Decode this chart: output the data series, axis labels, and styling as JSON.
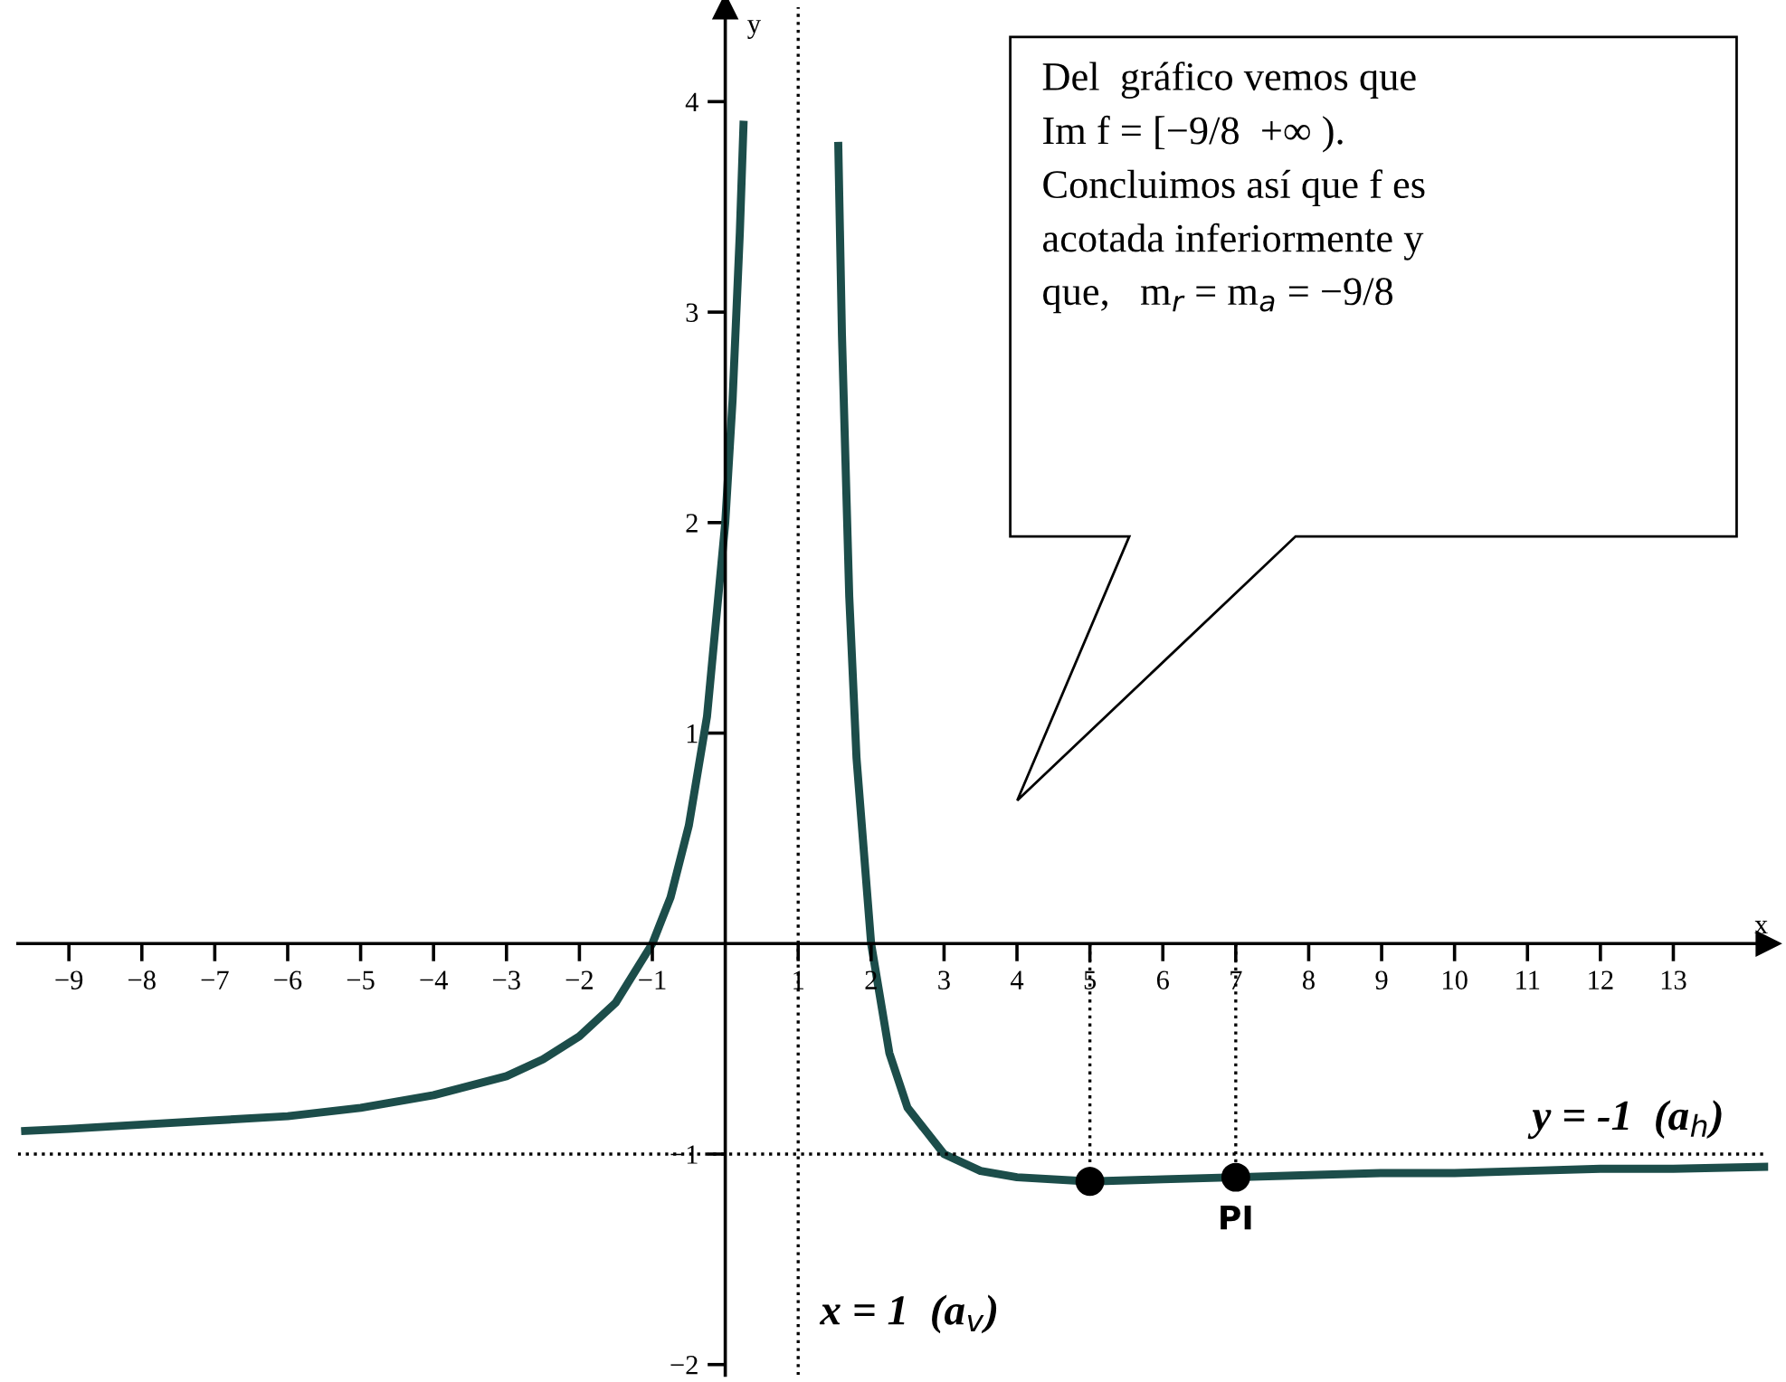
{
  "chart_data": {
    "type": "line",
    "xlabel": "x",
    "ylabel": "y",
    "xlim": [
      -9.7,
      14.3
    ],
    "ylim": [
      -2.05,
      4.45
    ],
    "xticks": [
      {
        "value": -9,
        "label": "−9"
      },
      {
        "value": -8,
        "label": "−8"
      },
      {
        "value": -7,
        "label": "−7"
      },
      {
        "value": -6,
        "label": "−6"
      },
      {
        "value": -5,
        "label": "−5"
      },
      {
        "value": -4,
        "label": "−4"
      },
      {
        "value": -3,
        "label": "−3"
      },
      {
        "value": -2,
        "label": "−2"
      },
      {
        "value": -1,
        "label": "−1"
      },
      1,
      2,
      3,
      4,
      5,
      6,
      7,
      8,
      9,
      10,
      11,
      12,
      13
    ],
    "yticks": [
      {
        "value": -2,
        "label": "−2"
      },
      {
        "value": -1,
        "label": "−1"
      },
      1,
      2,
      3,
      4
    ],
    "grid": false,
    "series": [
      {
        "color": "#1c4d4a",
        "x": [
          -9.6,
          -9,
          -8,
          -7,
          -6,
          -5,
          -4,
          -3,
          -2.5,
          -2,
          -1.5,
          -1,
          -0.75,
          -0.5,
          -0.25,
          0,
          0.1,
          0.2,
          0.25
        ],
        "values": [
          -0.89,
          -0.88,
          -0.86,
          -0.84,
          -0.82,
          -0.78,
          -0.72,
          -0.63,
          -0.55,
          -0.44,
          -0.28,
          0,
          0.22,
          0.56,
          1.08,
          2,
          2.58,
          3.38,
          3.89
        ]
      },
      {
        "color": "#1c4d4a",
        "x": [
          1.55,
          1.6,
          1.7,
          1.8,
          2,
          2.25,
          2.5,
          3,
          3.5,
          4,
          5,
          6,
          7,
          8,
          9,
          10,
          11,
          12,
          13,
          14.3
        ],
        "values": [
          3.79,
          2.89,
          1.65,
          0.88,
          0,
          -0.52,
          -0.78,
          -1,
          -1.08,
          -1.11,
          -1.13,
          -1.12,
          -1.11,
          -1.1,
          -1.09,
          -1.09,
          -1.08,
          -1.07,
          -1.07,
          -1.06
        ]
      },
      {
        "type": "line",
        "color": "#000000",
        "line_style": "dotted",
        "x": [
          5,
          5
        ],
        "values": [
          0,
          -1.13
        ]
      },
      {
        "type": "line",
        "color": "#000000",
        "line_style": "dotted",
        "x": [
          7,
          7
        ],
        "values": [
          0,
          -1.11
        ]
      },
      {
        "type": "scatter",
        "color": "#000000",
        "marker": "circle",
        "x": [
          5,
          7
        ],
        "values": [
          -1.13,
          -1.11
        ]
      }
    ],
    "ref_lines": [
      {
        "axis": "y",
        "value": -1,
        "label": "y = -1  (a$_{h}$)",
        "line_style": "dotted",
        "color": "#000000"
      },
      {
        "axis": "x",
        "value": 1,
        "label": "x = 1  (a$_{v}$)",
        "line_style": "dotted",
        "color": "#000000"
      }
    ],
    "annotations": [
      {
        "text": "PI",
        "x": 7,
        "y": -1.11
      },
      "Del  gráfico vemos que\nIm f = [−9/8  +∞ ).\nConcluimos así que f es\nacotada inferiormente y\nque,   m$_{r}$ = m$_{a}$ = −9/8"
    ]
  }
}
